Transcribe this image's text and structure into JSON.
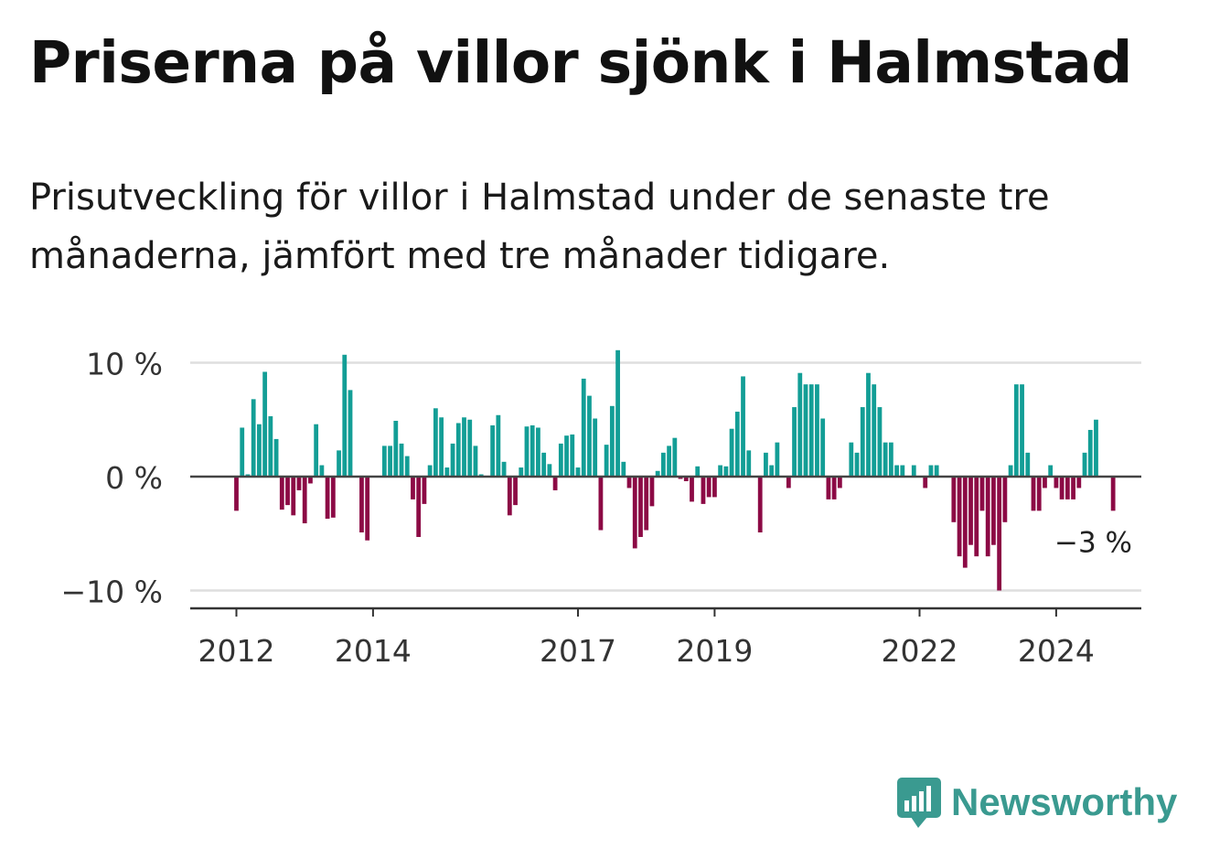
{
  "header": {
    "title": "Priserna på villor sjönk i Halmstad",
    "subtitle": "Prisutveckling för villor i Halmstad under de senaste tre månaderna, jämfört med tre månader tidigare."
  },
  "brand": {
    "name": "Newsworthy",
    "icon": "bar-chart-speech-bubble-icon",
    "color": "#3a9a90"
  },
  "chart_data": {
    "type": "bar",
    "start": "2012-01",
    "frequency": "monthly",
    "ylim": [
      -12,
      12
    ],
    "yticks": [
      {
        "value": 10,
        "label": "10 %"
      },
      {
        "value": 0,
        "label": "0 %"
      },
      {
        "value": -10,
        "label": "−10 %"
      }
    ],
    "xticks": [
      {
        "value": "2012-01",
        "label": "2012"
      },
      {
        "value": "2014-01",
        "label": "2014"
      },
      {
        "value": "2017-01",
        "label": "2017"
      },
      {
        "value": "2019-01",
        "label": "2019"
      },
      {
        "value": "2022-01",
        "label": "2022"
      },
      {
        "value": "2024-01",
        "label": "2024"
      }
    ],
    "grid": true,
    "positive_color": "#139e96",
    "negative_color": "#8c0a45",
    "last_label": "−3 %",
    "values": [
      -3,
      4.3,
      0.2,
      6.8,
      4.6,
      9.2,
      5.3,
      3.3,
      -2.9,
      -2.5,
      -3.4,
      -1.2,
      -4.1,
      -0.6,
      4.6,
      1,
      -3.7,
      -3.6,
      2.3,
      10.7,
      7.6,
      0,
      -4.9,
      -5.6,
      0,
      0,
      2.7,
      2.7,
      4.9,
      2.9,
      1.8,
      -2,
      -5.3,
      -2.4,
      1,
      6,
      5.2,
      0.8,
      2.9,
      4.7,
      5.2,
      5,
      2.7,
      0.2,
      0,
      4.5,
      5.4,
      1.3,
      -3.4,
      -2.5,
      0.8,
      4.4,
      4.5,
      4.3,
      2.1,
      1.1,
      -1.2,
      2.9,
      3.6,
      3.7,
      0.8,
      8.6,
      7.1,
      5.1,
      -4.7,
      2.8,
      6.2,
      11.1,
      1.3,
      -1,
      -6.3,
      -5.3,
      -4.7,
      -2.6,
      0.5,
      2.1,
      2.7,
      3.4,
      -0.2,
      -0.4,
      -2.2,
      0.9,
      -2.4,
      -1.8,
      -1.8,
      1,
      0.9,
      4.2,
      5.7,
      8.8,
      2.3,
      0,
      -4.9,
      2.1,
      1,
      3,
      0,
      -1,
      6.1,
      9.1,
      8.1,
      8.1,
      8.1,
      5.1,
      -2,
      -2,
      -1,
      0,
      3,
      2.1,
      6.1,
      9.1,
      8.1,
      6.1,
      3,
      3,
      1,
      1,
      0,
      1,
      0,
      -1,
      1,
      1,
      0,
      0,
      -4,
      -7,
      -8,
      -6,
      -7,
      -3,
      -7,
      -6,
      -10,
      -4,
      1,
      8.1,
      8.1,
      2.1,
      -3,
      -3,
      -1,
      1,
      -1,
      -2,
      -2,
      -2,
      -1,
      2.1,
      4.1,
      5,
      0,
      0,
      -3
    ]
  }
}
